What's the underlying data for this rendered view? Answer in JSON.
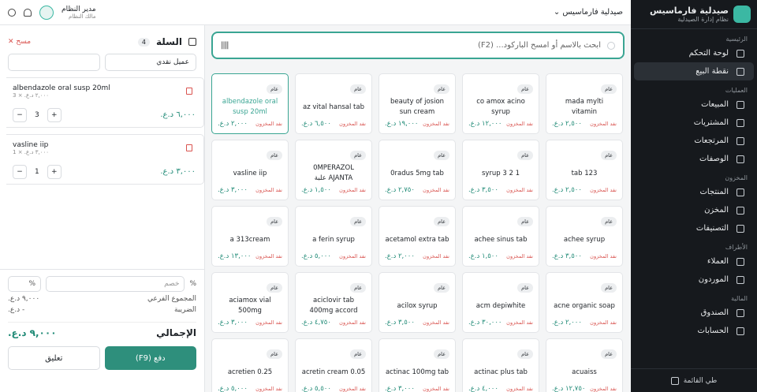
{
  "sidebar": {
    "brand": "صيدلية فارماسيس",
    "tagline": "نظام إدارة الصيدلية",
    "sections": [
      {
        "title": "الرئيسية",
        "items": [
          "لوحة التحكم",
          "نقطة البيع"
        ]
      },
      {
        "title": "العمليات",
        "items": [
          "المبيعات",
          "المشتريات",
          "المرتجعات",
          "الوصفات"
        ]
      },
      {
        "title": "المخزون",
        "items": [
          "المنتجات",
          "المخزن",
          "التصنيفات"
        ]
      },
      {
        "title": "الأطراف",
        "items": [
          "العملاء",
          "الموردون"
        ]
      },
      {
        "title": "المالية",
        "items": [
          "الصندوق",
          "الحسابات"
        ]
      }
    ],
    "collapse": "طي القائمة"
  },
  "topbar": {
    "pharmacy": "صيدلية فارماسيس",
    "user_name": "مدير النظام",
    "user_role": "مالك النظام"
  },
  "search": {
    "placeholder": "ابحث بالاسم أو امسح الباركود... (F2)"
  },
  "products": [
    {
      "badge": "عام",
      "name": "mada mylti vitamin",
      "stock": "نفد المخزون",
      "price": "٢,٥٠٠ د.ع."
    },
    {
      "badge": "عام",
      "name": "co amox acino syrup",
      "stock": "نفد المخزون",
      "price": "١٢,٠٠٠ د.ع."
    },
    {
      "badge": "عام",
      "name": "beauty of josion sun cream",
      "stock": "نفد المخزون",
      "price": "١٩,٠٠٠ د.ع."
    },
    {
      "badge": "عام",
      "name": "az vital hansal tab",
      "stock": "نفد المخزون",
      "price": "٦,٥٠٠ د.ع."
    },
    {
      "badge": "عام",
      "name": "albendazole oral susp 20ml",
      "stock": "نفد المخزون",
      "price": "٢,٠٠٠ د.ع."
    },
    {
      "badge": "عام",
      "name": "123 tab",
      "stock": "نفد المخزون",
      "price": "٢,٥٠٠ د.ع."
    },
    {
      "badge": "عام",
      "name": "1 2 3 syrup",
      "stock": "نفد المخزون",
      "price": "٣,٥٠٠ د.ع."
    },
    {
      "badge": "عام",
      "name": "0radus 5mg tab",
      "stock": "نفد المخزون",
      "price": "٢,٧٥٠ د.ع."
    },
    {
      "badge": "عام",
      "name": "0MPERAZOL AJANTA علبة",
      "stock": "نفد المخزون",
      "price": "١,٥٠٠ د.ع."
    },
    {
      "badge": "عام",
      "name": "vasline iip",
      "stock": "نفد المخزون",
      "price": "٣,٠٠٠ د.ع."
    },
    {
      "badge": "عام",
      "name": "achee syrup",
      "stock": "نفد المخزون",
      "price": "٣,٥٠٠ د.ع."
    },
    {
      "badge": "عام",
      "name": "achee sinus tab",
      "stock": "نفد المخزون",
      "price": "١,٥٠٠ د.ع."
    },
    {
      "badge": "عام",
      "name": "acetamol extra tab",
      "stock": "نفد المخزون",
      "price": "٢,٠٠٠ د.ع."
    },
    {
      "badge": "عام",
      "name": "a ferin syrup",
      "stock": "نفد المخزون",
      "price": "٥,٠٠٠ د.ع."
    },
    {
      "badge": "عام",
      "name": "a 313cream",
      "stock": "نفد المخزون",
      "price": "١٣,٠٠٠ د.ع."
    },
    {
      "badge": "عام",
      "name": "acne organic soap",
      "stock": "نفد المخزون",
      "price": "٢,٠٠٠ د.ع."
    },
    {
      "badge": "عام",
      "name": "acm depiwhite",
      "stock": "نفد المخزون",
      "price": "٣٠,٠٠٠ د.ع."
    },
    {
      "badge": "عام",
      "name": "acilox syrup",
      "stock": "نفد المخزون",
      "price": "٣,٥٠٠ د.ع."
    },
    {
      "badge": "عام",
      "name": "aciclovir tab 400mg accord",
      "stock": "نفد المخزون",
      "price": "٤,٧٥٠ د.ع."
    },
    {
      "badge": "عام",
      "name": "aciamox vial 500mg",
      "stock": "نفد المخزون",
      "price": "٣,٠٠٠ د.ع."
    },
    {
      "badge": "عام",
      "name": "acuaiss",
      "stock": "نفد المخزون",
      "price": "١٢,٧٥٠ د.ع."
    },
    {
      "badge": "عام",
      "name": "actinac plus tab",
      "stock": "نفد المخزون",
      "price": "٤,٠٠٠ د.ع."
    },
    {
      "badge": "عام",
      "name": "actinac 100mg tab",
      "stock": "نفد المخزون",
      "price": "٣,٠٠٠ د.ع."
    },
    {
      "badge": "عام",
      "name": "acretin cream 0.05",
      "stock": "نفد المخزون",
      "price": "٥,٥٠٠ د.ع."
    },
    {
      "badge": "عام",
      "name": "acretien 0.25",
      "stock": "نفد المخزون",
      "price": "٥,٠٠٠ د.ع."
    }
  ],
  "cart": {
    "title": "السلة",
    "count": "4",
    "clear": "مسح",
    "customer": "عميل نقدي",
    "items": [
      {
        "name": "albendazole oral susp 20ml",
        "unit": "٢,٠٠٠ د.ع. × 3",
        "qty": "3",
        "total": "٦,٠٠٠ د.ع."
      },
      {
        "name": "vasline iip",
        "unit": "٣,٠٠٠ د.ع. × 1",
        "qty": "1",
        "total": "٣,٠٠٠ د.ع."
      }
    ],
    "discount_label": "%",
    "discount_placeholder": "خصم",
    "discount_type": "%",
    "subtotal_label": "المجموع الفرعي",
    "subtotal": "٩,٠٠٠ د.ع.",
    "tax_label": "الضريبة",
    "tax": "- د.ع.",
    "total_label": "الإجمالي",
    "total": "٩,٠٠٠ د.ع.",
    "hold": "تعليق",
    "pay": "دفع (F9)"
  }
}
